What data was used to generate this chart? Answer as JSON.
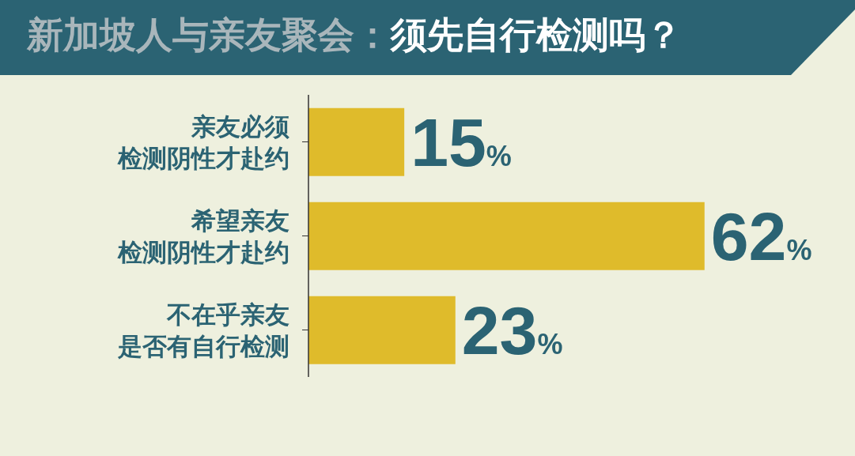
{
  "chart_data": {
    "type": "bar",
    "orientation": "horizontal",
    "title": "新加坡人与亲友聚会：须先自行检测吗？",
    "categories": [
      "亲友必须检测阴性才赴约",
      "希望亲友检测阴性才赴约",
      "不在乎亲友是否有自行检测"
    ],
    "values": [
      15,
      62,
      23
    ],
    "color": "#dfbb2b",
    "value_labels": [
      "15%",
      "62%",
      "23%"
    ]
  }
}
